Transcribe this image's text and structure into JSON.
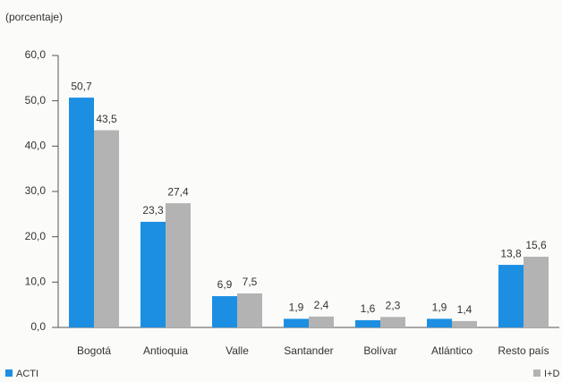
{
  "chart_data": {
    "type": "bar",
    "ylabel": "(porcentaje)",
    "categories": [
      "Bogotá",
      "Antioquia",
      "Valle",
      "Santander",
      "Bolívar",
      "Atlántico",
      "Resto país"
    ],
    "series": [
      {
        "name": "ACTI",
        "color": "#1c8fe2",
        "values": [
          50.7,
          23.3,
          6.9,
          1.9,
          1.6,
          1.9,
          13.8
        ],
        "value_labels": [
          "50,7",
          "23,3",
          "6,9",
          "1,9",
          "1,6",
          "1,9",
          "13,8"
        ]
      },
      {
        "name": "I+D",
        "color": "#b3b3b3",
        "values": [
          43.5,
          27.4,
          7.5,
          2.4,
          2.3,
          1.4,
          15.6
        ],
        "value_labels": [
          "43,5",
          "27,4",
          "7,5",
          "2,4",
          "2,3",
          "1,4",
          "15,6"
        ]
      }
    ],
    "ylim": [
      0,
      60
    ],
    "yticks": [
      {
        "value": 0,
        "label": "0,0"
      },
      {
        "value": 10,
        "label": "10,0"
      },
      {
        "value": 20,
        "label": "20,0"
      },
      {
        "value": 30,
        "label": "30,0"
      },
      {
        "value": 40,
        "label": "40,0"
      },
      {
        "value": 50,
        "label": "50,0"
      },
      {
        "value": 60,
        "label": "60,0"
      }
    ],
    "grid": false,
    "legend": "bottom"
  }
}
